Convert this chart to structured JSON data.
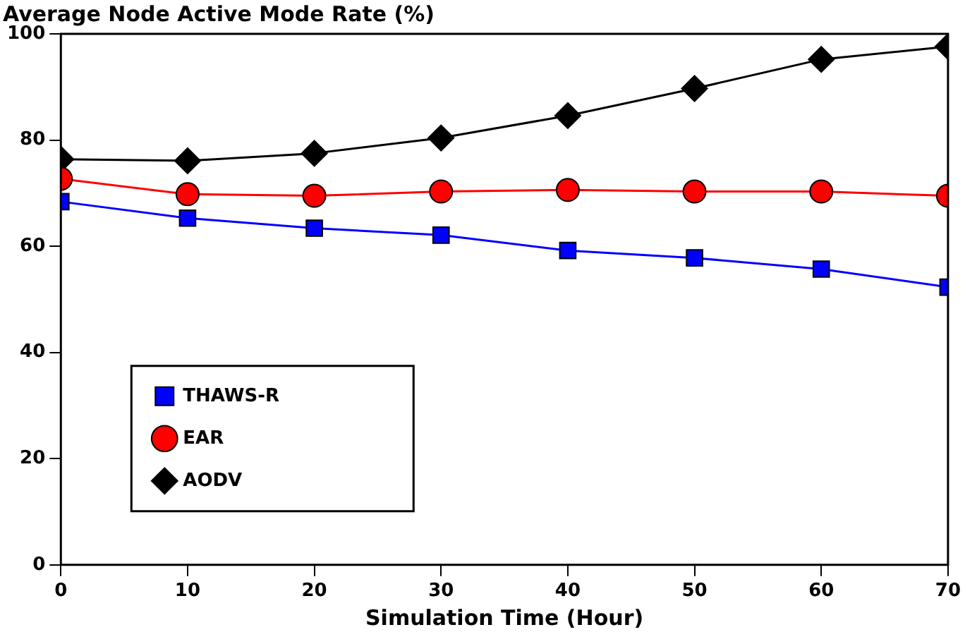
{
  "chart_data": {
    "type": "line",
    "title": "Average Node Active Mode Rate (%)",
    "xlabel": "Simulation Time (Hour)",
    "x": [
      0,
      10,
      20,
      30,
      40,
      50,
      60,
      70
    ],
    "series": [
      {
        "name": "THAWS-R",
        "color": "#0000ff",
        "marker": "square",
        "values": [
          68.4,
          65.3,
          63.4,
          62.1,
          59.2,
          57.8,
          55.7,
          52.3
        ]
      },
      {
        "name": "EAR",
        "color": "#ff0000",
        "marker": "circle",
        "values": [
          72.7,
          69.8,
          69.5,
          70.3,
          70.6,
          70.3,
          70.3,
          69.5
        ]
      },
      {
        "name": "AODV",
        "color": "#000000",
        "marker": "diamond",
        "values": [
          76.4,
          76.1,
          77.5,
          80.4,
          84.6,
          89.7,
          95.2,
          97.6
        ]
      }
    ],
    "xlim": [
      0,
      70
    ],
    "xticks": [
      0,
      10,
      20,
      30,
      40,
      50,
      60,
      70
    ],
    "ylim": [
      0,
      100
    ],
    "yticks": [
      0,
      20,
      40,
      60,
      80,
      100
    ],
    "grid": false,
    "legend": "bottom left",
    "line_style": "solid"
  }
}
